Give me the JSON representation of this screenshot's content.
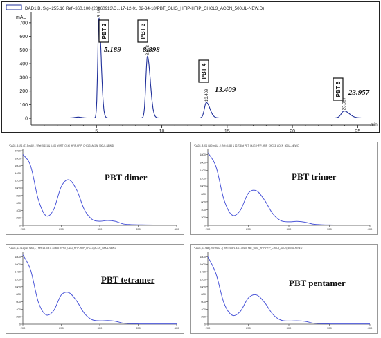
{
  "chart_data": [
    {
      "type": "line",
      "legend": "DAD1 B, Sig=255,16 Ref=360,100 (20160913\\O...17-12-01 02-34-18\\PBT_OLIG_HFIP-HFIP_CHCL3_ACCN_500UL-NEW.D)",
      "ylabel": "mAU",
      "xlabel": "min",
      "xlim": [
        0,
        26.2
      ],
      "ylim": [
        -40,
        760
      ],
      "xticks": [
        5,
        10,
        15,
        20,
        25
      ],
      "yticks": [
        0,
        100,
        200,
        300,
        400,
        500,
        600,
        700
      ],
      "color": "#1f2f9a",
      "peaks": [
        {
          "rt": 5.189,
          "height": 730,
          "width": 0.16,
          "label": "PBT 2",
          "rt_label": "5.189",
          "apex_label": "5.189"
        },
        {
          "rt": 8.898,
          "height": 450,
          "width": 0.21,
          "label": "PBT 3",
          "rt_label": "8.898",
          "apex_label": "8.898"
        },
        {
          "rt": 13.409,
          "height": 112,
          "width": 0.26,
          "label": "PBT 4",
          "rt_label": "13.409",
          "apex_label": "13.409"
        },
        {
          "rt": 23.957,
          "height": 50,
          "width": 0.38,
          "label": "PBT 5",
          "rt_label": "23.957",
          "apex_label": "23.957"
        }
      ]
    },
    {
      "type": "line",
      "title": "PBT dimer",
      "header": "*DAD1, 5.191 (27.5 mAU, - ) Ref=5.151 & 5.404 of PBT_OLIG_HFIP-HFIP_CHCL3_ACCN_500UL-NEW.D",
      "x": [
        200,
        210,
        220,
        230,
        240,
        250,
        260,
        270,
        280,
        290,
        300,
        310,
        320,
        330,
        340,
        350,
        360,
        370,
        380,
        390,
        400
      ],
      "y": [
        1900,
        1600,
        700,
        260,
        420,
        1040,
        1220,
        950,
        420,
        160,
        110,
        130,
        110,
        40,
        20,
        15,
        12,
        10,
        10,
        10,
        10
      ],
      "xticks": [
        200,
        250,
        300,
        350,
        400
      ],
      "yticks": [
        0,
        200,
        400,
        600,
        800,
        1000,
        1200,
        1400,
        1600,
        1800,
        2000
      ],
      "xlim": [
        200,
        400
      ],
      "ylim": [
        0,
        2000
      ],
      "title_underline": false
    },
    {
      "type": "line",
      "title": "PBT trimer",
      "header": "*DAD1, 8.911 (160 mAU, - ) Ref=8.858 & 12.778 of PBT_OLIG_HFIP-HFIP_CHCL3_ACCN_500UL-NEW.D",
      "x": [
        200,
        210,
        220,
        230,
        240,
        250,
        260,
        270,
        280,
        290,
        300,
        310,
        320,
        330,
        340,
        350,
        360,
        370,
        380,
        390,
        400
      ],
      "y": [
        1850,
        1500,
        650,
        260,
        380,
        820,
        880,
        640,
        300,
        120,
        90,
        100,
        80,
        30,
        15,
        10,
        8,
        8,
        8,
        8,
        8
      ],
      "xticks": [
        200,
        250,
        300,
        350,
        400
      ],
      "yticks": [
        0,
        200,
        400,
        600,
        800,
        1000,
        1200,
        1400,
        1600,
        1800
      ],
      "xlim": [
        200,
        400
      ],
      "ylim": [
        0,
        1900
      ],
      "title_underline": false
    },
    {
      "type": "line",
      "title": "PBT tetramer",
      "header": "*DAD1, 13.411 (115 mAU, - ) Ref=13.378 & 13.858 of PBT_OLIG_HFIP-HFIP_CHCL3_ACCN_500UL-NEW.D",
      "x": [
        200,
        210,
        220,
        230,
        240,
        250,
        260,
        270,
        280,
        290,
        300,
        310,
        320,
        330,
        340,
        350,
        360,
        370,
        380,
        390,
        400
      ],
      "y": [
        1850,
        1450,
        600,
        250,
        360,
        780,
        840,
        620,
        290,
        120,
        90,
        95,
        80,
        30,
        15,
        10,
        8,
        8,
        8,
        8,
        8
      ],
      "xticks": [
        200,
        250,
        300,
        350,
        400
      ],
      "yticks": [
        0,
        200,
        400,
        600,
        800,
        1000,
        1200,
        1400,
        1600,
        1800
      ],
      "xlim": [
        200,
        400
      ],
      "ylim": [
        0,
        1900
      ],
      "title_underline": true
    },
    {
      "type": "line",
      "title": "PBT pentamer",
      "header": "*DAD1, 23.968 (79.9 mAU, - ) Ref=23.871 & 27.191 of PBT_OLIG_HFIP-HFIP_CHCL3_ACCN_500UL-NEW.D",
      "x": [
        200,
        210,
        220,
        230,
        240,
        250,
        260,
        270,
        280,
        290,
        300,
        310,
        320,
        330,
        340,
        350,
        360,
        370,
        380,
        390,
        400
      ],
      "y": [
        1800,
        1350,
        560,
        240,
        340,
        700,
        780,
        580,
        270,
        110,
        85,
        90,
        75,
        28,
        14,
        10,
        8,
        8,
        8,
        8,
        8
      ],
      "xticks": [
        200,
        250,
        300,
        350,
        400
      ],
      "yticks": [
        0,
        200,
        400,
        600,
        800,
        1000,
        1200,
        1400,
        1600,
        1800
      ],
      "xlim": [
        200,
        400
      ],
      "ylim": [
        0,
        1900
      ],
      "title_underline": false
    }
  ],
  "colors": {
    "trace": "#1f2f9a",
    "spectrum": "#4a55d8",
    "axis": "#333333"
  }
}
